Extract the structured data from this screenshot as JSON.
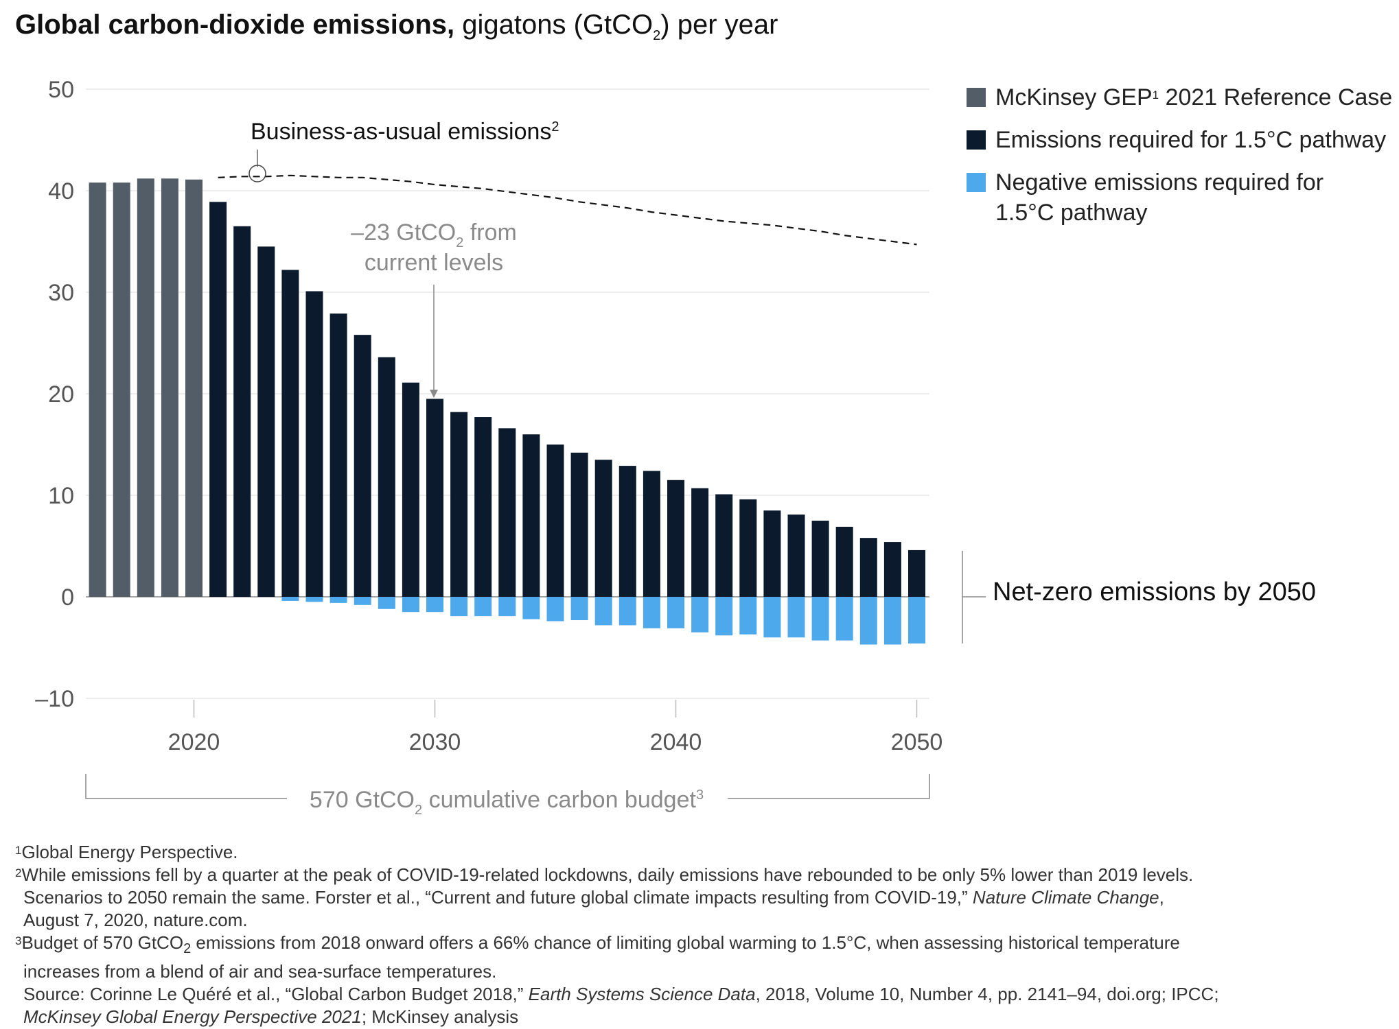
{
  "title": {
    "bold": "Global carbon-dioxide emissions,",
    "light": "gigatons (GtCO",
    "light_sub": "2",
    "light_end": ") per year"
  },
  "colors": {
    "reference": "#525d67",
    "pathway": "#0b1a2c",
    "negative": "#4ea9ec",
    "gridline": "#dddddd",
    "axis_text": "#555555",
    "annotation_grey": "#8a8a8a"
  },
  "legend": [
    {
      "label": "McKinsey GEP",
      "sup": "1",
      "label_end": " 2021 Reference Case",
      "color_key": "reference"
    },
    {
      "label": "Emissions required for 1.5°C pathway",
      "color_key": "pathway"
    },
    {
      "label": "Negative emissions required for",
      "label2": "1.5°C pathway",
      "color_key": "negative"
    }
  ],
  "annotations": {
    "bau_label": "Business-as-usual emissions",
    "bau_sup": "2",
    "drop_line1a": "–23 GtCO",
    "drop_sub": "2",
    "drop_line1b": " from",
    "drop_line2": "current levels",
    "net_zero": "Net-zero emissions by 2050",
    "budget_a": "570 GtCO",
    "budget_sub": "2",
    "budget_b": " cumulative carbon budget",
    "budget_sup": "3"
  },
  "chart_data": {
    "type": "bar",
    "title": "Global carbon-dioxide emissions, gigatons (GtCO2) per year",
    "ylim": [
      -10,
      50
    ],
    "yticks": [
      -10,
      0,
      10,
      20,
      30,
      40,
      50
    ],
    "ytick_labels": [
      "–10",
      "0",
      "10",
      "20",
      "30",
      "40",
      "50"
    ],
    "xticks": [
      2020,
      2030,
      2040,
      2050
    ],
    "xtick_labels": [
      "2020",
      "2030",
      "2040",
      "2050"
    ],
    "grid": "horizontal",
    "legend_position": "right",
    "series": [
      {
        "name": "McKinsey GEP 2021 Reference Case",
        "color_key": "reference",
        "x": [
          2016,
          2017,
          2018,
          2019,
          2020
        ],
        "values": [
          40.8,
          40.8,
          41.2,
          41.2,
          41.1
        ]
      },
      {
        "name": "Emissions required for 1.5°C pathway",
        "color_key": "pathway",
        "x": [
          2021,
          2022,
          2023,
          2024,
          2025,
          2026,
          2027,
          2028,
          2029,
          2030,
          2031,
          2032,
          2033,
          2034,
          2035,
          2036,
          2037,
          2038,
          2039,
          2040,
          2041,
          2042,
          2043,
          2044,
          2045,
          2046,
          2047,
          2048,
          2049,
          2050
        ],
        "values": [
          38.9,
          36.5,
          34.5,
          32.2,
          30.1,
          27.9,
          25.8,
          23.6,
          21.1,
          19.5,
          18.2,
          17.7,
          16.6,
          16.0,
          15.0,
          14.2,
          13.5,
          12.9,
          12.4,
          11.5,
          10.7,
          10.1,
          9.6,
          8.5,
          8.1,
          7.5,
          6.9,
          5.8,
          5.4,
          4.6
        ]
      },
      {
        "name": "Negative emissions required for 1.5°C pathway",
        "color_key": "negative",
        "x": [
          2024,
          2025,
          2026,
          2027,
          2028,
          2029,
          2030,
          2031,
          2032,
          2033,
          2034,
          2035,
          2036,
          2037,
          2038,
          2039,
          2040,
          2041,
          2042,
          2043,
          2044,
          2045,
          2046,
          2047,
          2048,
          2049,
          2050
        ],
        "values": [
          -0.4,
          -0.5,
          -0.6,
          -0.8,
          -1.2,
          -1.5,
          -1.5,
          -1.9,
          -1.9,
          -1.9,
          -2.2,
          -2.4,
          -2.3,
          -2.8,
          -2.8,
          -3.1,
          -3.1,
          -3.5,
          -3.8,
          -3.7,
          -4.0,
          -4.0,
          -4.3,
          -4.3,
          -4.7,
          -4.7,
          -4.6
        ]
      },
      {
        "name": "Business-as-usual emissions",
        "type": "line",
        "style": "dashed",
        "x": [
          2021,
          2022,
          2023,
          2024,
          2025,
          2026,
          2027,
          2028,
          2029,
          2030,
          2031,
          2032,
          2033,
          2034,
          2035,
          2036,
          2037,
          2038,
          2039,
          2040,
          2041,
          2042,
          2043,
          2044,
          2045,
          2046,
          2047,
          2048,
          2049,
          2050
        ],
        "values": [
          41.3,
          41.4,
          41.4,
          41.5,
          41.4,
          41.3,
          41.3,
          41.1,
          40.9,
          40.6,
          40.4,
          40.2,
          39.9,
          39.6,
          39.3,
          38.9,
          38.6,
          38.3,
          37.9,
          37.6,
          37.3,
          37.0,
          36.8,
          36.6,
          36.3,
          36.0,
          35.6,
          35.3,
          35.0,
          34.7
        ]
      }
    ]
  },
  "footnotes": {
    "fn1_sup": "1",
    "fn1": "Global Energy Perspective.",
    "fn2_sup": "2",
    "fn2_l1": "While emissions fell by a quarter at the peak of COVID-19-related lockdowns, daily emissions have rebounded to be only 5% lower than 2019 levels.",
    "fn2_l2a": "Scenarios to 2050 remain the same. Forster et al., “Current and future global climate impacts resulting from COVID-19,” ",
    "fn2_l2i": "Nature Climate Change",
    "fn2_l2b": ",",
    "fn2_l3": "August 7, 2020, nature.com.",
    "fn3_sup": "3",
    "fn3_l1a": "Budget of 570 GtCO",
    "fn3_l1sub": "2",
    "fn3_l1b": " emissions from 2018 onward offers a 66% chance of limiting global warming to 1.5°C, when assessing historical temperature",
    "fn3_l2": "increases from a blend of air and sea-surface temperatures.",
    "src_a": "Source: Corinne Le Quéré et al., “Global Carbon Budget 2018,” ",
    "src_i": "Earth Systems Science Data",
    "src_b": ", 2018, Volume 10, Number 4, pp. 2141–94, doi.org; IPCC;",
    "src2_i": "McKinsey Global Energy Perspective 2021",
    "src2_b": "; McKinsey analysis"
  }
}
